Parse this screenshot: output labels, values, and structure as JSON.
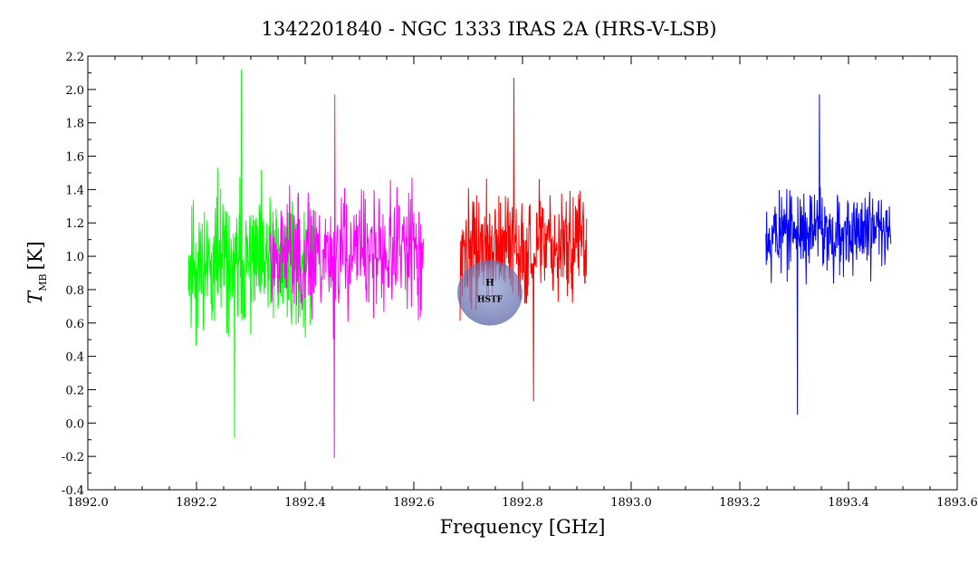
{
  "chart_data": {
    "type": "line",
    "title": "1342201840 - NGC 1333 IRAS 2A (HRS-V-LSB)",
    "xlabel": "Frequency [GHz]",
    "ylabel_main": "T",
    "ylabel_sub": "MB",
    "ylabel_unit": "[K]",
    "xlim": [
      1892.0,
      1893.6
    ],
    "ylim": [
      -0.4,
      2.2
    ],
    "grid": false,
    "legend": "none",
    "x_major_ticks": [
      "1892.0",
      "1892.2",
      "1892.4",
      "1892.6",
      "1892.8",
      "1893.0",
      "1893.2",
      "1893.4",
      "1893.6"
    ],
    "y_major_ticks": [
      "-0.4",
      "-0.2",
      "0.0",
      "0.2",
      "0.4",
      "0.6",
      "0.8",
      "1.0",
      "1.2",
      "1.4",
      "1.6",
      "1.8",
      "2.0",
      "2.2"
    ],
    "series": [
      {
        "color": "#00ff00",
        "x_start": 1892.185,
        "x_end": 1892.418,
        "mean": 0.95,
        "amplitude": 0.55,
        "max": 2.12,
        "min": -0.09,
        "seed": 11
      },
      {
        "color": "#ff00ff",
        "x_start": 1892.335,
        "x_end": 1892.618,
        "mean": 1.02,
        "amplitude": 0.5,
        "max": 1.97,
        "min": -0.21,
        "seed": 23
      },
      {
        "color": "#ff0000",
        "x_start": 1892.685,
        "x_end": 1892.918,
        "mean": 1.05,
        "amplitude": 0.45,
        "max": 2.07,
        "min": 0.13,
        "seed": 37
      },
      {
        "color": "#0000ff",
        "x_start": 1893.248,
        "x_end": 1893.478,
        "mean": 1.15,
        "amplitude": 0.35,
        "max": 1.97,
        "min": 0.05,
        "seed": 53
      }
    ]
  },
  "colors": {
    "watermark_fill": "#6f7fb8",
    "watermark_text": "#e8d23a"
  },
  "watermark": {
    "top_text": "H",
    "bottom_text": "HSTF"
  }
}
